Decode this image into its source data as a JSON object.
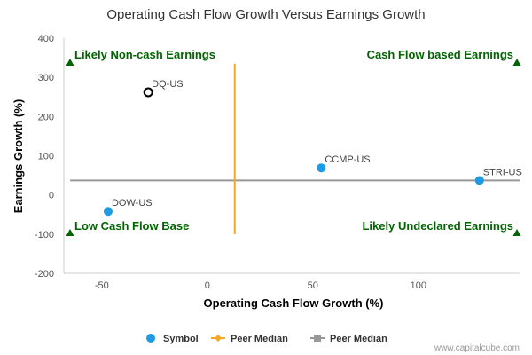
{
  "chart_data": {
    "type": "scatter",
    "title": "Operating Cash Flow Growth Versus Earnings Growth",
    "xlabel": "Operating Cash Flow Growth (%)",
    "ylabel": "Earnings Growth (%)",
    "xlim": [
      -68,
      148
    ],
    "ylim": [
      -200,
      400
    ],
    "x_ticks": [
      -50,
      0,
      50,
      100
    ],
    "y_ticks": [
      -200,
      -100,
      0,
      100,
      200,
      300,
      400
    ],
    "grid": false,
    "points": [
      {
        "symbol": "DQ-US",
        "x": -28,
        "y": 262,
        "style": "hollow"
      },
      {
        "symbol": "CCMP-US",
        "x": 54,
        "y": 69,
        "style": "filled"
      },
      {
        "symbol": "STRI-US",
        "x": 129,
        "y": 37,
        "style": "filled"
      },
      {
        "symbol": "DOW-US",
        "x": -47,
        "y": -42,
        "style": "filled"
      }
    ],
    "peer_median": {
      "x": 13,
      "y": 37,
      "vertical_range": [
        -100,
        335
      ],
      "horizontal_range": [
        -65,
        148
      ]
    },
    "quadrant_labels": [
      {
        "text": "Likely Non-cash Earnings",
        "position": "top-left"
      },
      {
        "text": "Cash Flow based Earnings",
        "position": "top-right"
      },
      {
        "text": "Low Cash Flow Base",
        "position": "bottom-left"
      },
      {
        "text": "Likely Undeclared Earnings",
        "position": "bottom-right"
      }
    ],
    "legend": {
      "placement": "bottom-center",
      "items": [
        {
          "label": "Symbol",
          "marker": "circle",
          "color": "#1e9be3"
        },
        {
          "label": "Peer Median",
          "marker": "diamond-line",
          "color": "#f5a623"
        },
        {
          "label": "Peer Median",
          "marker": "square-line",
          "color": "#999999"
        }
      ]
    }
  },
  "colors": {
    "point": "#1e9be3",
    "point_hollow_stroke": "#000000",
    "vertical_median": "#f5a623",
    "horizontal_median": "#999999",
    "quadrant_text": "#006400",
    "axis": "#cccccc"
  },
  "credit": "www.capitalcube.com"
}
